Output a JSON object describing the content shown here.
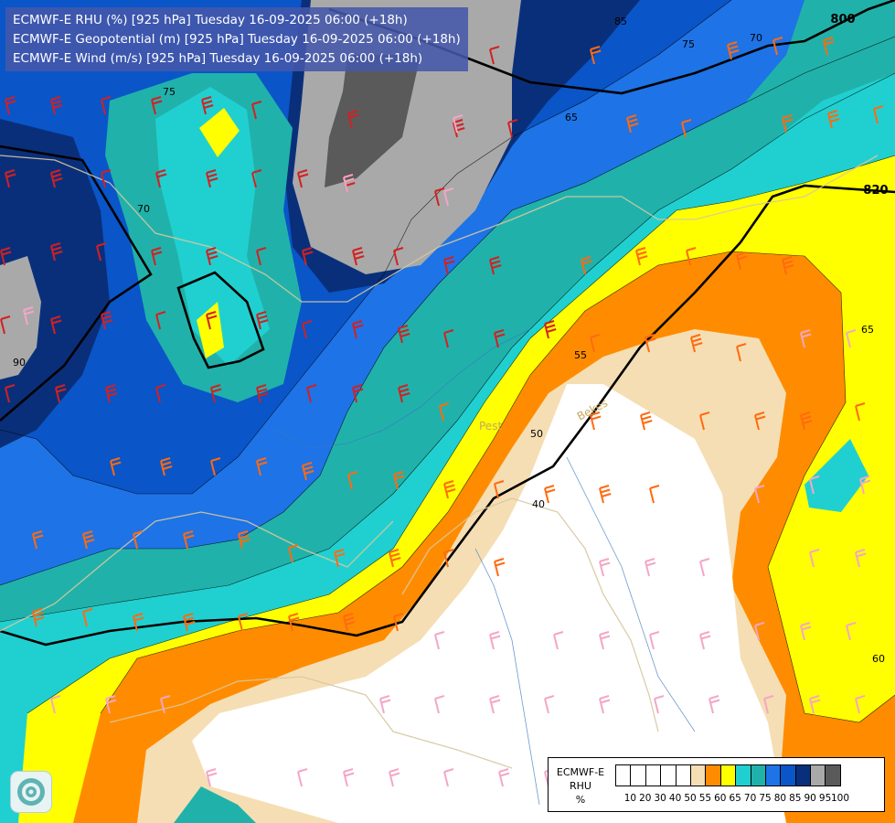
{
  "title_lines": [
    "ECMWF-E RHU (%) [925 hPa] Tuesday 16-09-2025 06:00 (+18h)",
    "ECMWF-E Geopotential (m) [925 hPa] Tuesday 16-09-2025 06:00 (+18h)",
    "ECMWF-E Wind (m/s) [925 hPa] Tuesday 16-09-2025 06:00 (+18h)"
  ],
  "legend": {
    "title_lines": [
      "ECMWF-E",
      "RHU",
      "%"
    ],
    "colors": [
      "#ffffff",
      "#ffffff",
      "#ffffff",
      "#ffffff",
      "#ffffff",
      "#f5deb3",
      "#ff8c00",
      "#ffff00",
      "#20d0d0",
      "#20b2aa",
      "#1e73e6",
      "#0a55c8",
      "#0a2f7a",
      "#a9a9a9",
      "#5a5a5a"
    ],
    "ticks": [
      "10",
      "20",
      "30",
      "40",
      "50",
      "55",
      "60",
      "65",
      "70",
      "75",
      "80",
      "85",
      "90",
      "95",
      "100"
    ]
  },
  "contour_labels": {
    "geopotential": [
      "800",
      "820"
    ],
    "rhu": [
      "85",
      "75",
      "70",
      "65",
      "75",
      "70",
      "90",
      "55",
      "50",
      "40",
      "65",
      "60"
    ]
  },
  "place_labels": [
    "Bekes",
    "Pest"
  ],
  "colors": {
    "c100": "#5a5a5a",
    "c95": "#a9a9a9",
    "c90": "#0a2f7a",
    "c85": "#0a55c8",
    "c80": "#1e73e6",
    "c75": "#20b2aa",
    "c70": "#20d0d0",
    "c65": "#ffff00",
    "c60": "#ff8c00",
    "c55": "#f5deb3",
    "c50": "#ffffff",
    "title_bg": "#4458aa"
  },
  "icons": [
    "ecmwf-logo-icon",
    "wind-barb-icon"
  ]
}
